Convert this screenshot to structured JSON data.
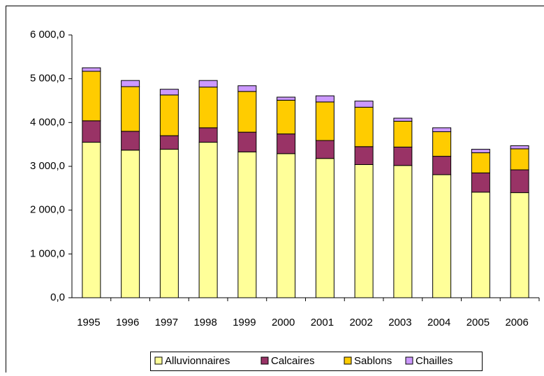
{
  "chart_data": {
    "type": "bar",
    "stacked": true,
    "categories": [
      "1995",
      "1996",
      "1997",
      "1998",
      "1999",
      "2000",
      "2001",
      "2002",
      "2003",
      "2004",
      "2005",
      "2006"
    ],
    "series": [
      {
        "name": "Alluvionnaires",
        "color": "#ffff99",
        "values": [
          3550,
          3370,
          3390,
          3550,
          3330,
          3290,
          3180,
          3040,
          3020,
          2810,
          2410,
          2400
        ]
      },
      {
        "name": "Calcaires",
        "color": "#993366",
        "values": [
          490,
          430,
          310,
          330,
          450,
          450,
          410,
          410,
          420,
          420,
          440,
          520
        ]
      },
      {
        "name": "Sablons",
        "color": "#ffcc00",
        "values": [
          1130,
          1020,
          930,
          930,
          930,
          770,
          880,
          900,
          590,
          560,
          460,
          480
        ]
      },
      {
        "name": "Chailles",
        "color": "#cc99ff",
        "values": [
          80,
          140,
          130,
          150,
          130,
          70,
          140,
          140,
          70,
          90,
          80,
          70
        ]
      }
    ],
    "ylim": [
      0,
      6000
    ],
    "yticks": [
      {
        "value": 0,
        "label": "0,0"
      },
      {
        "value": 1000,
        "label": "1 000,0"
      },
      {
        "value": 2000,
        "label": "2 000,0"
      },
      {
        "value": 3000,
        "label": "3 000,0"
      },
      {
        "value": 4000,
        "label": "4 000,0"
      },
      {
        "value": 5000,
        "label": "5 000,0"
      },
      {
        "value": 6000,
        "label": "6 000,0"
      }
    ],
    "legend": "bottom"
  }
}
